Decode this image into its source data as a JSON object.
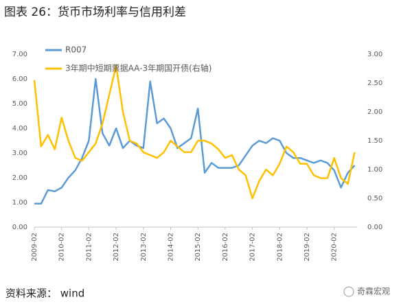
{
  "chart_data": {
    "type": "line",
    "title": "图表 26：货币市场利率与信用利差",
    "source": "资料来源：  wind",
    "watermark": "奇霖宏观",
    "x": [
      "2009-02",
      "2009-05",
      "2009-08",
      "2009-11",
      "2010-02",
      "2010-05",
      "2010-08",
      "2010-11",
      "2011-02",
      "2011-05",
      "2011-08",
      "2011-11",
      "2012-02",
      "2012-05",
      "2012-08",
      "2012-11",
      "2013-02",
      "2013-05",
      "2013-08",
      "2013-11",
      "2014-02",
      "2014-05",
      "2014-08",
      "2014-11",
      "2015-02",
      "2015-05",
      "2015-08",
      "2015-11",
      "2016-02",
      "2016-05",
      "2016-08",
      "2016-11",
      "2017-02",
      "2017-05",
      "2017-08",
      "2017-11",
      "2018-02",
      "2018-05",
      "2018-08",
      "2018-11",
      "2019-02",
      "2019-05",
      "2019-08",
      "2019-11",
      "2020-02",
      "2020-05",
      "2020-08",
      "2020-11"
    ],
    "xticks": [
      "2009-02",
      "2010-02",
      "2011-02",
      "2012-02",
      "2013-02",
      "2014-02",
      "2015-02",
      "2016-02",
      "2017-02",
      "2018-02",
      "2019-02",
      "2020-02"
    ],
    "series": [
      {
        "name": "R007",
        "color": "#5b9bd5",
        "axis": "y",
        "values": [
          0.95,
          0.95,
          1.5,
          1.45,
          1.6,
          2.0,
          2.3,
          2.8,
          3.5,
          6.0,
          3.8,
          3.3,
          4.0,
          3.2,
          3.5,
          3.3,
          3.2,
          5.9,
          4.2,
          4.4,
          4.0,
          3.2,
          3.4,
          3.6,
          4.8,
          2.2,
          2.6,
          2.4,
          2.4,
          2.4,
          2.5,
          2.9,
          3.3,
          3.5,
          3.4,
          3.6,
          3.5,
          3.0,
          2.8,
          2.8,
          2.7,
          2.6,
          2.7,
          2.6,
          2.3,
          1.6,
          2.2,
          2.5
        ]
      },
      {
        "name": "3年期中短期票据AA-3年期国开债(右轴)",
        "color": "#ffc000",
        "axis": "y2",
        "values": [
          2.55,
          1.4,
          1.6,
          1.35,
          1.9,
          1.5,
          1.2,
          1.15,
          1.3,
          1.45,
          1.8,
          2.3,
          2.8,
          2.0,
          1.5,
          1.45,
          1.3,
          1.25,
          1.2,
          1.3,
          1.5,
          1.4,
          1.3,
          1.3,
          1.5,
          1.5,
          1.45,
          1.35,
          1.2,
          1.25,
          1.0,
          0.9,
          0.5,
          0.8,
          1.0,
          0.9,
          1.1,
          1.4,
          1.3,
          1.1,
          1.1,
          0.9,
          0.85,
          0.85,
          1.2,
          0.85,
          0.75,
          1.3
        ]
      }
    ],
    "ylim": [
      0,
      7
    ],
    "yticks": [
      {
        "value": 0,
        "label": "0.00"
      },
      {
        "value": 1,
        "label": "1.00"
      },
      {
        "value": 2,
        "label": "2.00"
      },
      {
        "value": 3,
        "label": "3.00"
      },
      {
        "value": 4,
        "label": "4.00"
      },
      {
        "value": 5,
        "label": "5.00"
      },
      {
        "value": 6,
        "label": "6.00"
      },
      {
        "value": 7,
        "label": "7.00"
      }
    ],
    "y2lim": [
      0,
      3
    ],
    "y2ticks": [
      {
        "value": 0,
        "label": "0.00"
      },
      {
        "value": 0.5,
        "label": "0.50"
      },
      {
        "value": 1,
        "label": "1.00"
      },
      {
        "value": 1.5,
        "label": "1.50"
      },
      {
        "value": 2,
        "label": "2.00"
      },
      {
        "value": 2.5,
        "label": "2.50"
      },
      {
        "value": 3,
        "label": "3.00"
      }
    ]
  }
}
